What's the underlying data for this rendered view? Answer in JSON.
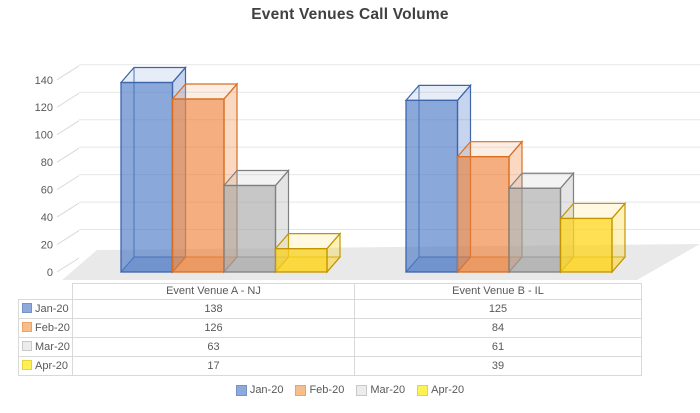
{
  "chart_data": {
    "type": "bar",
    "variant": "3d-column",
    "title": "Event Venues Call Volume",
    "categories": [
      "Event Venue A - NJ",
      "Event Venue B - IL"
    ],
    "series": [
      {
        "name": "Jan-20",
        "values": [
          138,
          125
        ],
        "color": "#4472C4",
        "edge": "#3E66AC",
        "swatch": "#8EAADC"
      },
      {
        "name": "Feb-20",
        "values": [
          126,
          84
        ],
        "color": "#ED7D31",
        "edge": "#D96E20",
        "swatch": "#F7BE8C"
      },
      {
        "name": "Mar-20",
        "values": [
          63,
          61
        ],
        "color": "#A5A5A5",
        "edge": "#808080",
        "swatch": "#EDECEC"
      },
      {
        "name": "Apr-20",
        "values": [
          17,
          39
        ],
        "color": "#FFD417",
        "edge": "#C29500",
        "swatch": "#FFF155"
      }
    ],
    "y_axis": {
      "min": 0,
      "max": 140,
      "step": 20,
      "tick_labels": [
        "0",
        "20",
        "40",
        "60",
        "80",
        "100",
        "120",
        "140"
      ]
    },
    "grid": true,
    "legend_position": "bottom",
    "data_table_shown": true,
    "colors": {
      "axis_text": "#595959",
      "gridline": "#E7E7E7",
      "floor": "#E9E9E9",
      "table_border": "#D9D9D9",
      "title_text": "#404040"
    }
  }
}
